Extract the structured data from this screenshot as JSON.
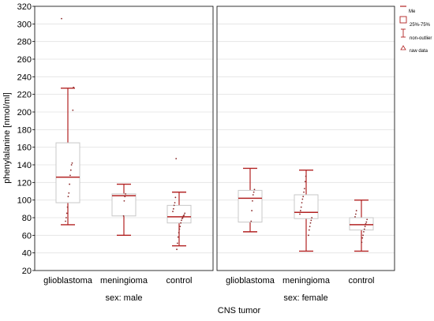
{
  "chart_data": {
    "type": "box",
    "ylabel": "phenylalanine [nmol/ml]",
    "xlabel": "CNS tumor",
    "ylim": [
      20,
      320
    ],
    "yticks": [
      20,
      40,
      60,
      80,
      100,
      120,
      140,
      160,
      180,
      200,
      220,
      240,
      260,
      280,
      300,
      320
    ],
    "categories": [
      "glioblastoma",
      "meningioma",
      "control"
    ],
    "grid": true,
    "legend": {
      "position": "right",
      "entries": [
        "Me",
        "25%-75%",
        "non-outlier",
        "raw data"
      ]
    },
    "colors": {
      "whisker": "#b22222",
      "median": "#b22222",
      "box": "#c8c8c8",
      "points": "#8b2a2a",
      "grid": "#e2e2e2"
    },
    "panels": [
      {
        "label": "sex: male",
        "boxes": [
          {
            "category": "glioblastoma",
            "min": 72,
            "q1": 97,
            "median": 126,
            "q3": 165,
            "max": 227,
            "raw": [
              306,
              228,
              202,
              142,
              140,
              134,
              128,
              118,
              108,
              104,
              92,
              85,
              80,
              76
            ]
          },
          {
            "category": "meningioma",
            "min": 60,
            "q1": 82,
            "median": 105,
            "q3": 107,
            "max": 118,
            "raw": [
              107,
              104,
              99,
              82
            ]
          },
          {
            "category": "control",
            "min": 48,
            "q1": 74,
            "median": 81,
            "q3": 94,
            "max": 109,
            "raw": [
              147,
              103,
              97,
              94,
              90,
              87,
              85,
              83,
              82,
              80,
              79,
              77,
              74,
              70,
              67,
              63,
              58,
              51,
              44
            ]
          }
        ]
      },
      {
        "label": "sex: female",
        "boxes": [
          {
            "category": "glioblastoma",
            "min": 64,
            "q1": 75,
            "median": 102,
            "q3": 111,
            "max": 136,
            "raw": [
              112,
              109,
              106,
              99,
              88,
              76
            ]
          },
          {
            "category": "meningioma",
            "min": 42,
            "q1": 79,
            "median": 86,
            "q3": 106,
            "max": 134,
            "raw": [
              127,
              121,
              113,
              109,
              104,
              101,
              97,
              92,
              88,
              84,
              80,
              77,
              74,
              70,
              66,
              60
            ]
          },
          {
            "category": "control",
            "min": 42,
            "q1": 66,
            "median": 72,
            "q3": 80,
            "max": 100,
            "raw": [
              88,
              84,
              81,
              78,
              75,
              73,
              70,
              67,
              64,
              60,
              57,
              52
            ]
          }
        ]
      }
    ]
  }
}
